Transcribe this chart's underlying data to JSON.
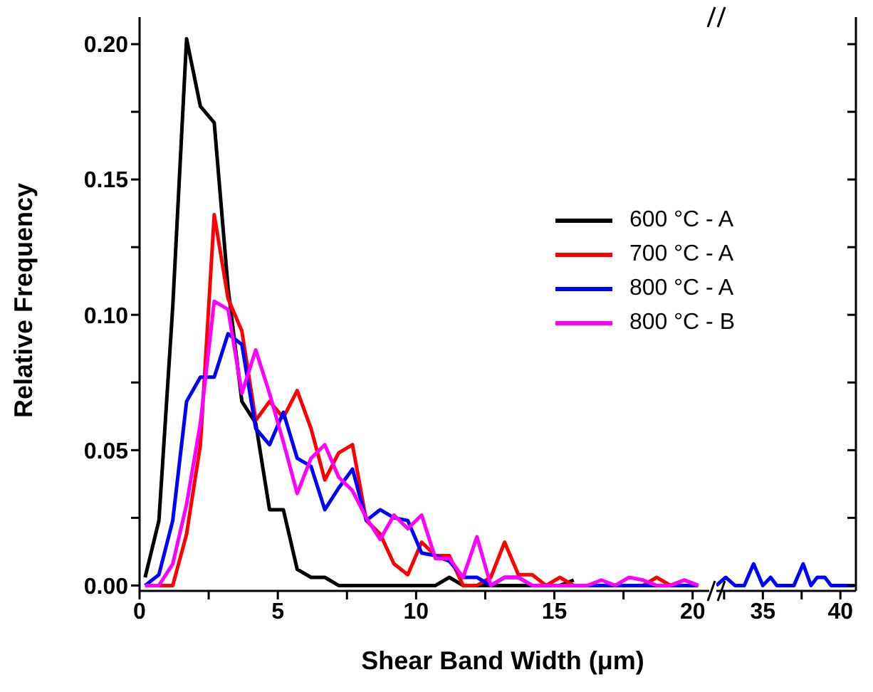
{
  "chart_data": [
    {
      "type": "line",
      "xlabel": "Shear Band Width (μm)",
      "ylabel": "Relative Frequency",
      "legend": "top right",
      "x": [
        0.2,
        0.7,
        1.2,
        1.7,
        2.2,
        2.7,
        3.2,
        3.7,
        4.2,
        4.7,
        5.2,
        5.7,
        6.2,
        6.7,
        7.2,
        7.7,
        8.2,
        8.7,
        9.2,
        9.7,
        10.2,
        10.7,
        11.2,
        11.7,
        12.2,
        12.7,
        13.2,
        13.7,
        14.2,
        14.7,
        15.2,
        15.7,
        16.2,
        16.7,
        17.2,
        17.7,
        18.2,
        18.7,
        19.2,
        19.7,
        20.2
      ],
      "series": [
        {
          "name": "600 °C - A",
          "color": "#000000",
          "values": [
            0.003,
            0.024,
            0.103,
            0.202,
            0.177,
            0.171,
            0.11,
            0.068,
            0.06,
            0.028,
            0.028,
            0.006,
            0.003,
            0.003,
            0,
            0,
            0,
            0,
            0,
            0,
            0,
            0,
            0.003,
            0,
            0,
            0,
            0,
            0,
            0,
            0,
            0,
            0.002,
            null,
            null,
            null,
            null,
            null,
            null,
            null,
            null,
            null
          ]
        },
        {
          "name": "700 °C - A",
          "color": "#ff0000",
          "values": [
            0,
            0,
            0,
            0.019,
            0.052,
            0.137,
            0.106,
            0.094,
            0.061,
            0.068,
            0.062,
            0.072,
            0.058,
            0.039,
            0.049,
            0.052,
            0.024,
            0.019,
            0.008,
            0.004,
            0.016,
            0.011,
            0.011,
            0,
            0,
            0.003,
            0.016,
            0.004,
            0.004,
            0,
            0.003,
            0,
            0,
            0,
            0,
            0,
            0,
            0.003,
            0,
            0.002,
            0
          ]
        },
        {
          "name": "800 °C - A",
          "color": "#0000ff",
          "values": [
            0,
            0.004,
            0.024,
            0.068,
            0.077,
            0.077,
            0.093,
            0.089,
            0.058,
            0.052,
            0.064,
            0.047,
            0.044,
            0.028,
            0.036,
            0.043,
            0.024,
            0.028,
            0.025,
            0.024,
            0.012,
            0.011,
            0.009,
            0.003,
            0.003,
            0,
            0.003,
            0.003,
            0,
            0,
            0,
            0,
            0,
            0,
            0,
            0,
            0,
            0,
            0,
            0,
            0
          ]
        },
        {
          "name": "800 °C - B",
          "color": "#ff00ff",
          "values": [
            0,
            0,
            0.008,
            0.03,
            0.06,
            0.105,
            0.102,
            0.071,
            0.087,
            0.071,
            0.053,
            0.034,
            0.047,
            0.052,
            0.04,
            0.035,
            0.025,
            0.017,
            0.026,
            0.021,
            0.026,
            0.01,
            0.01,
            0.003,
            0.018,
            0,
            0.003,
            0.003,
            0,
            0,
            0,
            0,
            0,
            0.002,
            0,
            0.003,
            0.002,
            0,
            0,
            0.002,
            0
          ]
        }
      ],
      "xlim": [
        0,
        20.6
      ],
      "xticks": [
        0,
        {
          "value": 2.5,
          "label": null
        },
        5,
        {
          "value": 7.5,
          "label": null
        },
        10,
        {
          "value": 12.5,
          "label": null
        },
        15,
        {
          "value": 17.5,
          "label": null
        },
        20
      ],
      "ylim": [
        -0.002,
        0.21
      ],
      "yticks": [
        {
          "value": 0,
          "label": "0.00"
        },
        {
          "value": 0.025,
          "label": null
        },
        {
          "value": 0.05,
          "label": "0.05"
        },
        {
          "value": 0.075,
          "label": null
        },
        {
          "value": 0.1,
          "label": "0.10"
        },
        {
          "value": 0.125,
          "label": null
        },
        {
          "value": 0.15,
          "label": "0.15"
        },
        {
          "value": 0.175,
          "label": null
        },
        {
          "value": 0.2,
          "label": "0.20"
        }
      ]
    },
    {
      "type": "line",
      "tick_labels": "x",
      "x": [
        32,
        32.6,
        33.2,
        33.8,
        34.4,
        35,
        35.5,
        35.9,
        36.5,
        37,
        37.6,
        38.1,
        38.5,
        39,
        39.4,
        40,
        40.9
      ],
      "series": [
        {
          "color": "#0000ff",
          "values": [
            0,
            0.003,
            0,
            0,
            0.008,
            0,
            0.003,
            0,
            0,
            0,
            0.008,
            0,
            0.003,
            0.003,
            0,
            0,
            0
          ]
        }
      ],
      "xlim": [
        32,
        41
      ],
      "xticks": [
        {
          "value": 32.5,
          "label": null
        },
        35,
        {
          "value": 37.5,
          "label": null
        },
        40
      ],
      "ylim": [
        -0.002,
        0.21
      ],
      "yticks": [
        {
          "value": 0,
          "label": null
        },
        {
          "value": 0.025,
          "label": null
        },
        {
          "value": 0.05,
          "label": null
        },
        {
          "value": 0.075,
          "label": null
        },
        {
          "value": 0.1,
          "label": null
        },
        {
          "value": 0.125,
          "label": null
        },
        {
          "value": 0.15,
          "label": null
        },
        {
          "value": 0.175,
          "label": null
        },
        {
          "value": 0.2,
          "label": null
        }
      ]
    }
  ]
}
